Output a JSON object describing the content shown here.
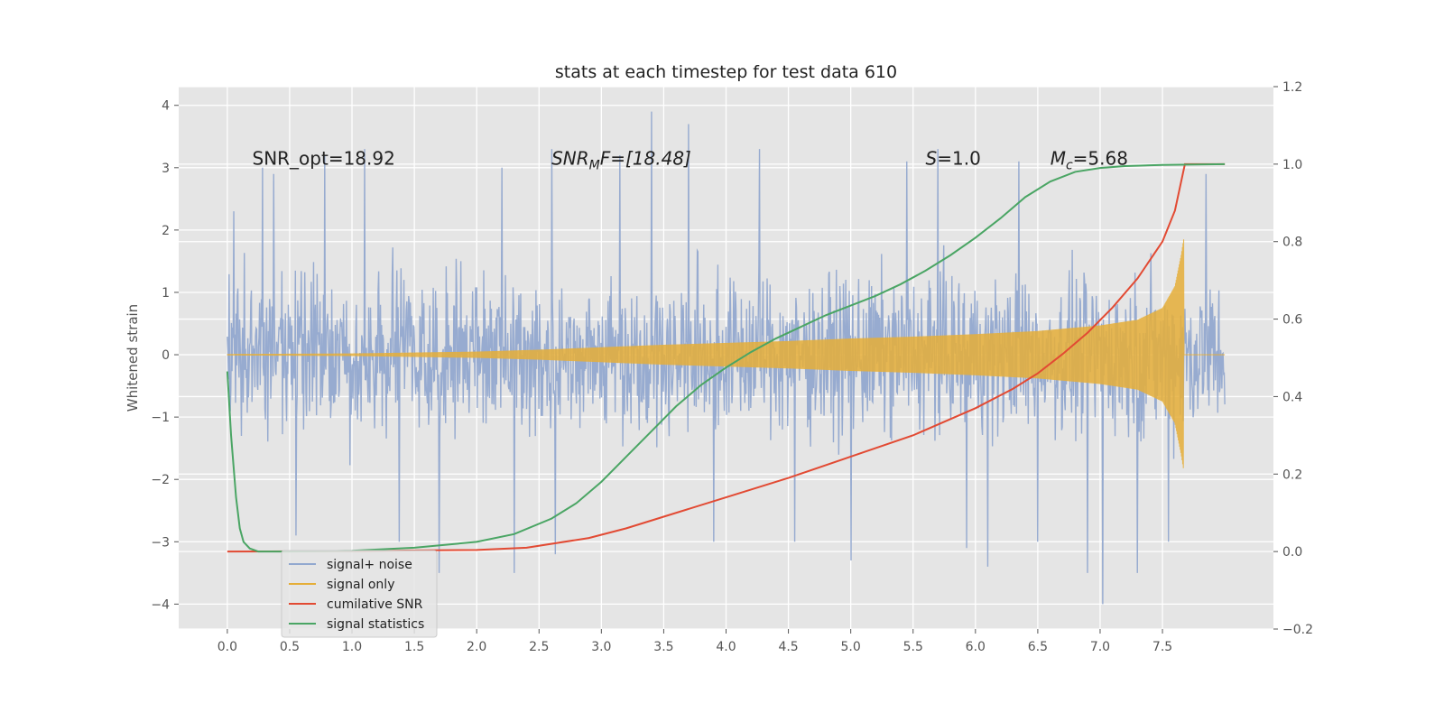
{
  "chart_data": {
    "type": "line",
    "title": "stats at each timestep for test data 610",
    "ylabel": "Whitened strain",
    "xlabel": "",
    "xlim": [
      -0.39,
      8.39
    ],
    "ylim": [
      -4.4,
      4.3
    ],
    "y2lim": [
      -0.2,
      1.2
    ],
    "xticks": [
      "0.0",
      "0.5",
      "1.0",
      "1.5",
      "2.0",
      "2.5",
      "3.0",
      "3.5",
      "4.0",
      "4.5",
      "5.0",
      "5.5",
      "6.0",
      "6.5",
      "7.0",
      "7.5"
    ],
    "yticks": [
      "−4",
      "−3",
      "−2",
      "−1",
      "0",
      "1",
      "2",
      "3",
      "4"
    ],
    "y2ticks": [
      "−0.2",
      "0.0",
      "0.2",
      "0.4",
      "0.6",
      "0.8",
      "1.0",
      "1.2"
    ],
    "grid": true,
    "legend_position": "lower-left",
    "annotations": [
      {
        "label": "SNR_opt=18.92",
        "x": 0.2,
        "y": 3.05
      },
      {
        "label": "SNR",
        "sub": "M",
        "rest": "F=[18.48]",
        "x": 2.6,
        "y": 3.05
      },
      {
        "label": "S",
        "rest": "=1.0",
        "x": 5.6,
        "y": 3.05
      },
      {
        "label": "M",
        "sub": "c",
        "rest": "=5.68",
        "x": 6.6,
        "y": 3.05
      }
    ],
    "series": [
      {
        "name": "signal+ noise",
        "color": "#92a8cf",
        "axis": "left",
        "duration": 8.0,
        "envelope": 1.6,
        "extremes": [
          [
            0.05,
            2.3
          ],
          [
            0.28,
            3.0
          ],
          [
            0.37,
            2.9
          ],
          [
            0.55,
            -2.9
          ],
          [
            0.78,
            3.2
          ],
          [
            1.1,
            3.3
          ],
          [
            1.38,
            -3.0
          ],
          [
            1.7,
            -3.5
          ],
          [
            2.2,
            3.0
          ],
          [
            2.3,
            -3.5
          ],
          [
            2.6,
            3.3
          ],
          [
            2.63,
            -3.2
          ],
          [
            3.15,
            3.2
          ],
          [
            3.4,
            3.9
          ],
          [
            3.7,
            3.7
          ],
          [
            3.9,
            -3.0
          ],
          [
            4.27,
            3.3
          ],
          [
            4.55,
            -3.0
          ],
          [
            5.0,
            -3.3
          ],
          [
            5.45,
            3.1
          ],
          [
            5.7,
            3.3
          ],
          [
            5.93,
            -3.1
          ],
          [
            6.1,
            -3.4
          ],
          [
            6.35,
            3.1
          ],
          [
            6.5,
            -3.0
          ],
          [
            6.9,
            -3.5
          ],
          [
            7.02,
            -4.0
          ],
          [
            7.3,
            -3.5
          ],
          [
            7.55,
            -3.0
          ],
          [
            7.85,
            2.9
          ]
        ]
      },
      {
        "name": "signal only",
        "color": "#e5ae38",
        "axis": "left",
        "amplitude_t": [
          0.0,
          1.0,
          2.0,
          2.5,
          3.0,
          3.5,
          4.0,
          4.5,
          5.0,
          5.5,
          6.0,
          6.5,
          7.0,
          7.3,
          7.5,
          7.6,
          7.65,
          7.67
        ],
        "amplitude": [
          0.01,
          0.02,
          0.05,
          0.08,
          0.12,
          0.16,
          0.19,
          0.22,
          0.26,
          0.29,
          0.33,
          0.38,
          0.47,
          0.56,
          0.75,
          1.1,
          1.6,
          1.85
        ],
        "end_t": 7.67
      },
      {
        "name": "cumilative SNR",
        "color": "#e24a33",
        "axis": "right",
        "x": [
          0.0,
          1.0,
          1.5,
          2.0,
          2.4,
          2.9,
          3.2,
          3.5,
          4.0,
          4.5,
          5.0,
          5.5,
          6.0,
          6.3,
          6.5,
          6.7,
          6.9,
          7.1,
          7.3,
          7.5,
          7.6,
          7.68,
          8.0
        ],
        "y": [
          0.0,
          0.001,
          0.003,
          0.004,
          0.01,
          0.035,
          0.06,
          0.09,
          0.14,
          0.19,
          0.245,
          0.3,
          0.37,
          0.42,
          0.46,
          0.51,
          0.565,
          0.63,
          0.705,
          0.8,
          0.88,
          1.0,
          1.0
        ]
      },
      {
        "name": "signal statistics",
        "color": "#348abd",
        "axis": "right",
        "display_color": "#4aa564",
        "x": [
          0.0,
          0.03,
          0.07,
          0.1,
          0.13,
          0.18,
          0.25,
          0.5,
          1.0,
          1.5,
          2.0,
          2.3,
          2.6,
          2.8,
          3.0,
          3.2,
          3.4,
          3.6,
          3.8,
          4.0,
          4.2,
          4.4,
          4.6,
          4.8,
          5.0,
          5.2,
          5.4,
          5.6,
          5.8,
          6.0,
          6.2,
          6.4,
          6.6,
          6.8,
          7.0,
          7.2,
          7.5,
          8.0
        ],
        "y": [
          0.465,
          0.3,
          0.14,
          0.06,
          0.025,
          0.008,
          0.0,
          0.0,
          0.002,
          0.01,
          0.025,
          0.045,
          0.085,
          0.125,
          0.18,
          0.245,
          0.31,
          0.375,
          0.43,
          0.475,
          0.515,
          0.55,
          0.58,
          0.61,
          0.635,
          0.66,
          0.69,
          0.725,
          0.765,
          0.81,
          0.86,
          0.915,
          0.955,
          0.98,
          0.99,
          0.995,
          0.998,
          1.0
        ]
      }
    ]
  }
}
